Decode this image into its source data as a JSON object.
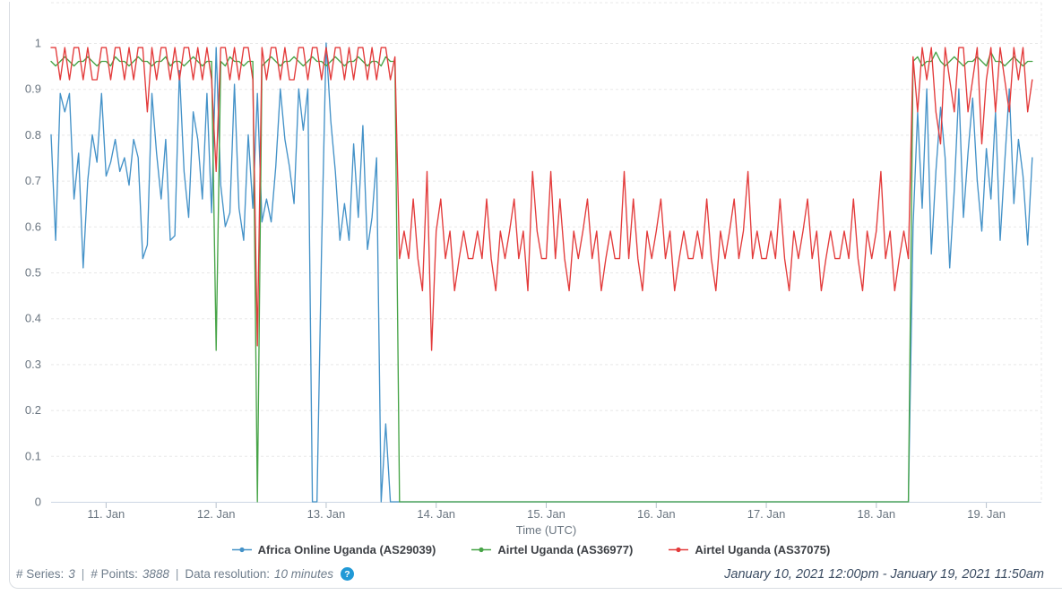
{
  "chart_data": {
    "type": "line",
    "title": "",
    "xlabel": "Time (UTC)",
    "ylabel": "",
    "x_unit": "day of January 2021",
    "x_start": 10.5,
    "x_step": 0.0416667,
    "xlim": [
      10.5,
      19.5
    ],
    "ylim": [
      0,
      1
    ],
    "grid": "dashed-horizontal",
    "legend_position": "bottom",
    "x_ticks": [
      {
        "v": 11,
        "label": "11. Jan"
      },
      {
        "v": 12,
        "label": "12. Jan"
      },
      {
        "v": 13,
        "label": "13. Jan"
      },
      {
        "v": 14,
        "label": "14. Jan"
      },
      {
        "v": 15,
        "label": "15. Jan"
      },
      {
        "v": 16,
        "label": "16. Jan"
      },
      {
        "v": 17,
        "label": "17. Jan"
      },
      {
        "v": 18,
        "label": "18. Jan"
      },
      {
        "v": 19,
        "label": "19. Jan"
      }
    ],
    "y_ticks": [
      {
        "v": 0,
        "label": "0"
      },
      {
        "v": 0.1,
        "label": "0.1"
      },
      {
        "v": 0.2,
        "label": "0.2"
      },
      {
        "v": 0.3,
        "label": "0.3"
      },
      {
        "v": 0.4,
        "label": "0.4"
      },
      {
        "v": 0.5,
        "label": "0.5"
      },
      {
        "v": 0.6,
        "label": "0.6"
      },
      {
        "v": 0.7,
        "label": "0.7"
      },
      {
        "v": 0.8,
        "label": "0.8"
      },
      {
        "v": 0.9,
        "label": "0.9"
      },
      {
        "v": 1,
        "label": "1"
      }
    ],
    "series": [
      {
        "name": "Africa Online Uganda (AS29039)",
        "color": "#4492c8",
        "values_rle": [
          [
            0.8,
            0.57,
            0.89,
            0.85,
            0.89,
            0.66,
            0.76,
            0.51,
            0.7,
            0.8,
            0.74,
            0.89,
            0.71,
            0.74,
            0.79,
            0.72,
            0.75,
            0.69,
            0.79,
            0.75,
            0.53,
            0.56,
            0.89,
            0.76,
            0.66,
            0.79,
            0.57,
            0.58,
            0.94,
            0.72,
            0.62,
            0.85,
            0.79,
            0.66,
            0.89,
            0.63,
            0.99,
            0.69,
            0.6,
            0.63,
            0.91,
            0.64,
            0.57,
            0.8,
            0.64,
            0.89,
            0.61,
            0.66,
            0.61,
            0.73,
            0.9,
            0.79,
            0.73,
            0.65,
            0.9,
            0.81,
            0.9
          ],
          [
            0,
            0,
            0.55,
            1.0,
            0.83,
            0.72,
            0.57,
            0.65,
            0.57,
            0.78,
            0.62,
            0.82,
            0.55,
            0.62,
            0.75,
            0,
            0.17
          ],
          {
            "v": 0,
            "n": 114
          },
          [
            0.6,
            0.85,
            0.64,
            0.9,
            0.54,
            0.72,
            0.86,
            0.75,
            0.51,
            0.68,
            0.9,
            0.62,
            0.76,
            0.88,
            0.7,
            0.59,
            0.77,
            0.66,
            0.85,
            0.57,
            0.74,
            0.9,
            0.65,
            0.79,
            0.71,
            0.56,
            0.75
          ]
        ]
      },
      {
        "name": "Airtel Uganda (AS36977)",
        "color": "#47a447",
        "values_rle": [
          [
            0.96,
            0.95,
            0.96,
            0.97,
            0.96,
            0.95,
            0.96,
            0.96,
            0.97,
            0.96,
            0.95,
            0.96,
            0.96,
            0.95,
            0.97,
            0.96,
            0.96,
            0.95,
            0.96,
            0.97,
            0.96,
            0.96,
            0.95,
            0.96,
            0.96,
            0.97,
            0.95,
            0.96,
            0.96,
            0.95,
            0.96,
            0.97,
            0.96,
            0.95,
            0.96,
            0.96
          ],
          [
            0.33
          ],
          [
            0.96,
            0.95,
            0.97,
            0.96,
            0.96,
            0.95,
            0.96,
            0.96
          ],
          [
            0
          ],
          [
            0.95,
            0.96,
            0.97,
            0.96,
            0.95,
            0.96,
            0.96,
            0.97,
            0.96,
            0.95,
            0.96,
            0.97,
            0.96,
            0.96,
            0.95,
            0.96,
            0.97,
            0.96,
            0.95,
            0.96,
            0.96,
            0.97,
            0.96,
            0.95,
            0.96,
            0.96,
            0.95,
            0.97,
            0.96,
            0.96
          ],
          {
            "v": 0,
            "n": 112
          },
          [
            0.96,
            0.97,
            0.95,
            0.96,
            0.96,
            0.98,
            0.96,
            0.95,
            0.96,
            0.97,
            0.96,
            0.95,
            0.96,
            0.96,
            0.97,
            0.96,
            0.95,
            0.98,
            0.96,
            0.96,
            0.95,
            0.96,
            0.97,
            0.96,
            0.95,
            0.96,
            0.96
          ]
        ]
      },
      {
        "name": "Airtel Uganda (AS37075)",
        "color": "#e33b3b",
        "values_rle": [
          [
            0.99,
            0.99,
            0.92,
            0.99,
            0.92,
            0.99,
            0.99,
            0.92,
            0.99,
            0.92,
            0.92,
            0.99,
            0.99,
            0.92,
            0.99,
            0.99,
            0.92,
            0.99,
            0.92,
            0.99,
            0.99,
            0.85,
            0.99,
            0.92,
            0.99,
            0.99,
            0.92,
            0.99,
            0.92,
            0.99,
            0.99,
            0.92,
            0.99,
            0.92,
            0.99,
            0.92,
            0.72,
            0.99,
            0.99,
            0.92,
            0.99,
            0.92,
            0.99,
            0.99,
            0.92,
            0.34,
            0.99,
            0.92,
            0.99,
            0.99,
            0.92,
            0.99,
            0.92,
            0.92,
            0.99,
            0.99,
            0.92,
            0.99,
            0.99,
            0.92,
            0.99,
            0.92,
            0.99,
            0.99,
            0.92,
            0.99,
            0.92,
            0.99,
            0.99,
            0.92,
            0.99,
            0.92,
            0.99,
            0.99,
            0.92,
            0.97
          ],
          [
            0.53,
            0.59,
            0.53,
            0.66,
            0.53,
            0.46,
            0.72,
            0.33,
            0.59,
            0.66,
            0.53,
            0.59,
            0.46,
            0.53,
            0.59,
            0.53
          ],
          [
            0.53,
            0.59,
            0.53,
            0.66,
            0.53,
            0.46,
            0.59,
            0.53,
            0.59,
            0.66,
            0.53,
            0.59,
            0.46,
            0.72,
            0.59,
            0.53
          ],
          [
            0.53,
            0.72,
            0.53,
            0.66,
            0.53,
            0.46,
            0.59,
            0.53,
            0.59,
            0.66,
            0.53,
            0.59,
            0.46,
            0.53,
            0.59,
            0.53
          ],
          [
            0.53,
            0.72,
            0.53,
            0.66,
            0.53,
            0.46,
            0.59,
            0.53,
            0.59,
            0.66,
            0.53,
            0.59,
            0.46,
            0.53,
            0.59,
            0.53
          ],
          [
            0.53,
            0.59,
            0.53,
            0.66,
            0.53,
            0.46,
            0.59,
            0.53,
            0.59,
            0.66,
            0.53,
            0.59,
            0.72,
            0.53,
            0.59,
            0.53
          ],
          [
            0.53,
            0.59,
            0.53,
            0.66,
            0.53,
            0.46,
            0.59,
            0.53,
            0.59,
            0.66,
            0.53,
            0.59,
            0.46,
            0.53,
            0.59,
            0.53
          ],
          [
            0.53,
            0.59,
            0.53,
            0.66,
            0.53,
            0.46,
            0.59,
            0.53,
            0.59,
            0.72,
            0.53,
            0.59,
            0.46,
            0.53,
            0.59,
            0.53
          ],
          [
            0.97,
            0.85,
            0.99,
            0.92,
            0.99,
            0.85,
            0.78,
            0.99,
            0.92,
            0.85,
            0.99,
            0.99,
            0.85,
            0.92,
            0.99,
            0.78,
            0.92,
            0.99,
            0.85,
            0.99,
            0.92,
            0.85,
            0.99,
            0.92,
            0.99,
            0.85,
            0.92
          ]
        ]
      }
    ]
  },
  "footer": {
    "series_label": "# Series:",
    "series_value": "3",
    "separator": "|",
    "points_label": "# Points:",
    "points_value": "3888",
    "resolution_label": "Data resolution:",
    "resolution_value": "10 minutes",
    "help_glyph": "?",
    "date_range": "January 10, 2021 12:00pm - January 19, 2021 11:50am"
  },
  "colors": {
    "grid": "#e8e8e8",
    "axis_line": "#ccd6e3",
    "tick": "#b7c2cd",
    "tick_text": "#6a7580",
    "legend_text": "#3d4045",
    "footer_text": "#6f7d8c",
    "date_text": "#3c4d63",
    "help_badge": "#2199d6",
    "panel_border": "#d9dde2"
  }
}
